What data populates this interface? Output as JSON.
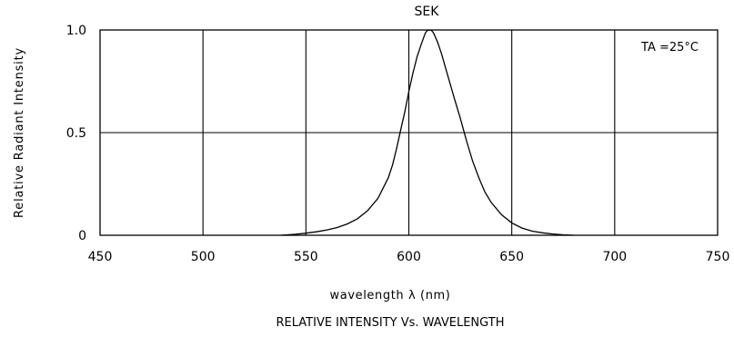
{
  "chart_data": {
    "type": "line",
    "title": "SEK",
    "xlabel": "wavelength λ (nm)",
    "ylabel": "Relative Radiant Intensity",
    "caption": "RELATIVE INTENSITY Vs. WAVELENGTH",
    "annotation": "TA =25°C",
    "xlim": [
      450,
      750
    ],
    "ylim": [
      0,
      1.0
    ],
    "xticks": [
      450,
      500,
      550,
      600,
      650,
      700,
      750
    ],
    "yticks": [
      0,
      0.5,
      1.0
    ],
    "xtick_labels": [
      "450",
      "500",
      "550",
      "600",
      "650",
      "700",
      "750"
    ],
    "ytick_labels": [
      "0",
      "0.5",
      "1.0"
    ],
    "grid": true,
    "series": [
      {
        "x": [
          538,
          545,
          550,
          555,
          560,
          565,
          570,
          575,
          580,
          585,
          590,
          592,
          594,
          596,
          598,
          600,
          602,
          604,
          606,
          608,
          609,
          610,
          611,
          612,
          614,
          616,
          618,
          620,
          622,
          625,
          628,
          631,
          634,
          637,
          640,
          645,
          650,
          655,
          660,
          665,
          670,
          675,
          680
        ],
        "y": [
          0.0,
          0.005,
          0.01,
          0.017,
          0.025,
          0.037,
          0.055,
          0.08,
          0.12,
          0.18,
          0.28,
          0.34,
          0.42,
          0.51,
          0.6,
          0.7,
          0.79,
          0.87,
          0.93,
          0.985,
          0.998,
          1.0,
          0.998,
          0.985,
          0.94,
          0.88,
          0.81,
          0.74,
          0.67,
          0.57,
          0.46,
          0.36,
          0.28,
          0.21,
          0.16,
          0.1,
          0.06,
          0.035,
          0.02,
          0.012,
          0.006,
          0.002,
          0.0
        ]
      }
    ]
  }
}
